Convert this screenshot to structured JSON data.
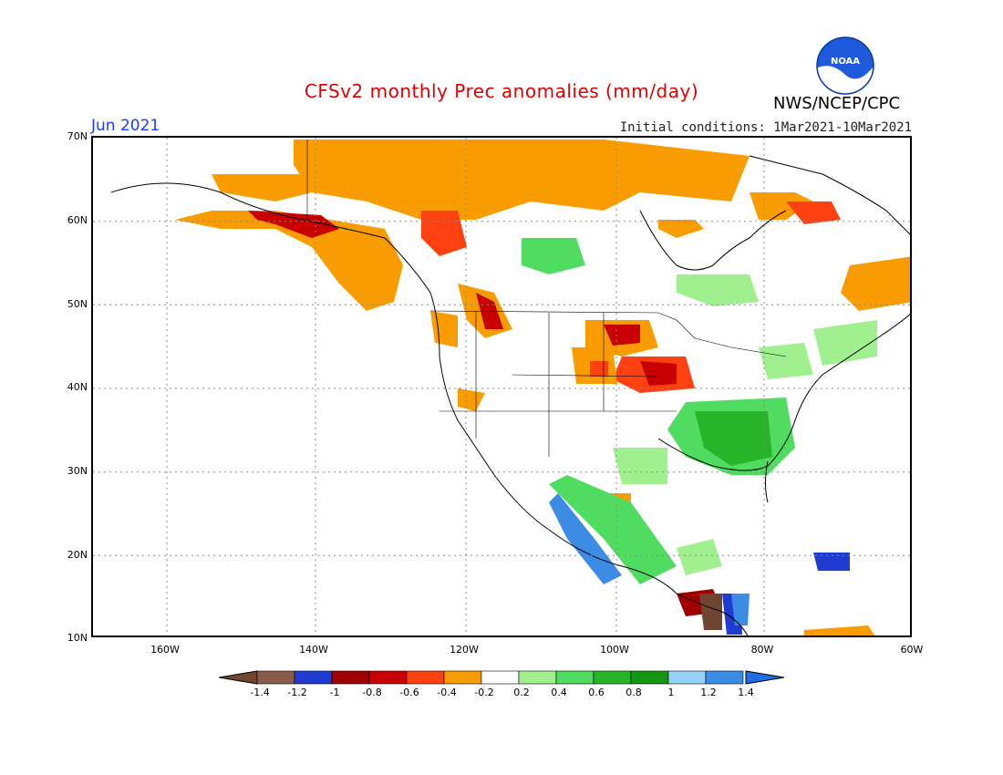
{
  "header": {
    "title": "CFSv2 monthly Prec anomalies (mm/day)",
    "month": "Jun 2021",
    "initial_conditions": "Initial conditions: 1Mar2021-10Mar2021",
    "agency": "NWS/NCEP/CPC",
    "logo_text": "NOAA"
  },
  "axes": {
    "lat_labels": [
      "70N",
      "60N",
      "50N",
      "40N",
      "30N",
      "20N",
      "10N"
    ],
    "lon_labels": [
      "160W",
      "140W",
      "120W",
      "100W",
      "80W",
      "60W"
    ]
  },
  "colorbar": {
    "labels": [
      "-1.4",
      "-1.2",
      "-1",
      "-0.8",
      "-0.6",
      "-0.4",
      "-0.2",
      "0.2",
      "0.4",
      "0.6",
      "0.8",
      "1",
      "1.2",
      "1.4"
    ],
    "colors": [
      "#8b5a4a",
      "#1e3cd0",
      "#a00000",
      "#c80000",
      "#ff4010",
      "#f89c00",
      "#ffffff",
      "#a0f090",
      "#50dc60",
      "#28b428",
      "#149614",
      "#96d2f8",
      "#3c8ce6"
    ],
    "low_end_color": "#6e4632",
    "high_end_color": "#1e6ee6"
  },
  "map_regions": {
    "dry_colors": {
      "slight": "#f89c00",
      "moderate": "#ff4010",
      "strong": "#c80000"
    },
    "wet_colors": {
      "slight": "#a0f090",
      "moderate": "#50dc60",
      "strong": "#28b428"
    }
  }
}
